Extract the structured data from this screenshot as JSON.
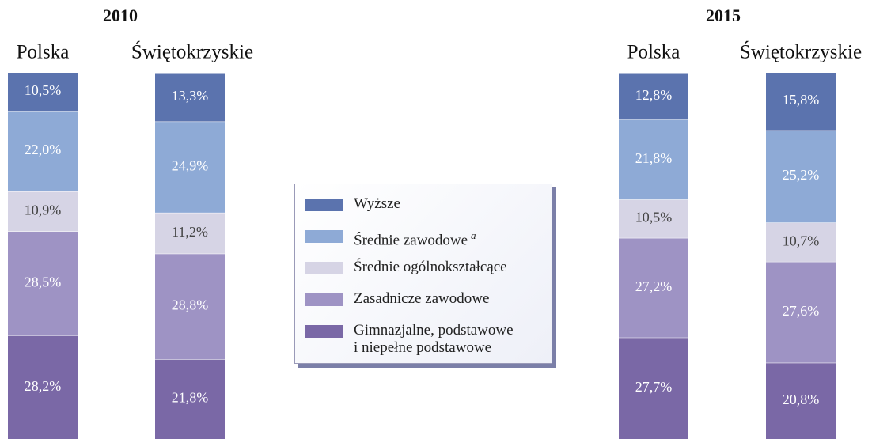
{
  "chart_data": {
    "type": "bar",
    "stacked": true,
    "ylim": [
      0,
      100
    ],
    "groups": [
      {
        "title": "2010",
        "categories": [
          "Polska",
          "Świętokrzyskie"
        ]
      },
      {
        "title": "2015",
        "categories": [
          "Polska",
          "Świętokrzyskie"
        ]
      }
    ],
    "series": [
      {
        "name": "Wyższe",
        "color": "#5b73ae",
        "values": [
          10.5,
          13.3,
          12.8,
          15.8
        ],
        "value_labels": [
          "10,5%",
          "13,3%",
          "12,8%",
          "15,8%"
        ]
      },
      {
        "name": "Średnie zawodowe",
        "note": "a",
        "color": "#8eaad6",
        "values": [
          22.0,
          24.9,
          21.8,
          25.2
        ],
        "value_labels": [
          "22,0%",
          "24,9%",
          "21,8%",
          "25,2%"
        ]
      },
      {
        "name": "Średnie ogólnokształcące",
        "color": "#d6d4e5",
        "values": [
          10.9,
          11.2,
          10.5,
          10.7
        ],
        "value_labels": [
          "10,9%",
          "11,2%",
          "10,5%",
          "10,7%"
        ]
      },
      {
        "name": "Zasadnicze zawodowe",
        "color": "#9e93c4",
        "values": [
          28.5,
          28.8,
          27.2,
          27.6
        ],
        "value_labels": [
          "28,5%",
          "28,8%",
          "27,2%",
          "27,6%"
        ]
      },
      {
        "name": "Gimnazjalne, podstawowe\ni niepełne podstawowe",
        "color": "#7a68a6",
        "values": [
          28.2,
          21.8,
          27.7,
          20.8
        ],
        "value_labels": [
          "28,2%",
          "21,8%",
          "27,7%",
          "20,8%"
        ]
      }
    ]
  }
}
